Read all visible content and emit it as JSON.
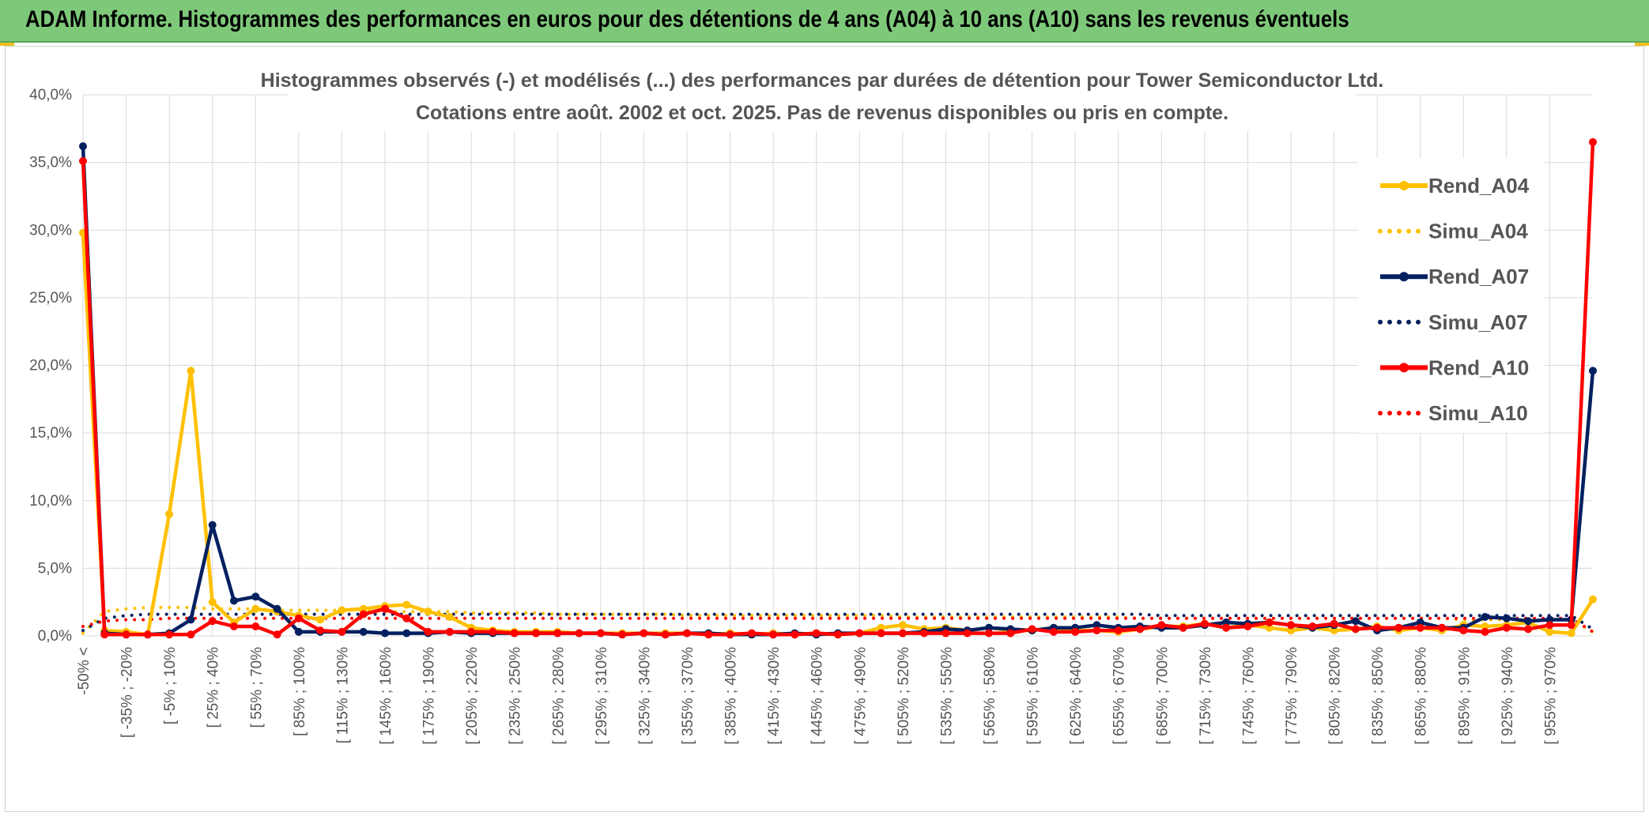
{
  "banner": {
    "title": "ADAM Informe. Histogrammes des performances en euros pour des détentions de 4 ans (A04) à 10 ans (A10) sans les revenus éventuels"
  },
  "colors": {
    "banner_bg": "#7ec87a",
    "A04": "#ffc000",
    "A07": "#002060",
    "A10": "#ff0000",
    "grid": "#d9d9d9"
  },
  "chart_data": {
    "type": "line",
    "title": "Histogrammes observés (-) et modélisés (...) des performances par durées de détention pour Tower Semiconductor Ltd.",
    "subtitle": "Cotations entre août. 2002 et oct. 2025. Pas de revenus disponibles ou pris en compte.",
    "xlabel": "",
    "ylabel": "",
    "ylim": [
      0,
      0.4
    ],
    "y_ticks": [
      "0,0%",
      "5,0%",
      "10,0%",
      "15,0%",
      "20,0%",
      "25,0%",
      "30,0%",
      "35,0%",
      "40,0%"
    ],
    "grid": true,
    "legend_position": "right",
    "x_tick_labels": [
      "-50% <",
      "[ -35% ; -20%",
      "[ -5% ; 10%",
      "[ 25% ; 40%",
      "[ 55% ; 70%",
      "[ 85% ; 100%",
      "[ 115% ; 130%",
      "[ 145% ; 160%",
      "[ 175% ; 190%",
      "[ 205% ; 220%",
      "[ 235% ; 250%",
      "[ 265% ; 280%",
      "[ 295% ; 310%",
      "[ 325% ; 340%",
      "[ 355% ; 370%",
      "[ 385% ; 400%",
      "[ 415% ; 430%",
      "[ 445% ; 460%",
      "[ 475% ; 490%",
      "[ 505% ; 520%",
      "[ 535% ; 550%",
      "[ 565% ; 580%",
      "[ 595% ; 610%",
      "[ 625% ; 640%",
      "[ 655% ; 670%",
      "[ 685% ; 700%",
      "[ 715% ; 730%",
      "[ 745% ; 760%",
      "[ 775% ; 790%",
      "[ 805% ; 820%",
      "[ 835% ; 850%",
      "[ 865% ; 880%",
      "[ 895% ; 910%",
      "[ 925% ; 940%",
      "[ 955% ; 970%"
    ],
    "n_points": 71,
    "series": [
      {
        "name": "Rend_A04",
        "style": "solid",
        "color": "#ffc000",
        "values": [
          0.298,
          0.004,
          0.003,
          0.001,
          0.09,
          0.196,
          0.025,
          0.01,
          0.02,
          0.018,
          0.015,
          0.012,
          0.019,
          0.02,
          0.022,
          0.023,
          0.018,
          0.014,
          0.006,
          0.004,
          0.003,
          0.003,
          0.003,
          0.002,
          0.002,
          0.002,
          0.002,
          0.002,
          0.002,
          0.001,
          0.002,
          0.001,
          0.002,
          0.001,
          0.002,
          0.001,
          0.002,
          0.006,
          0.008,
          0.005,
          0.006,
          0.004,
          0.006,
          0.004,
          0.004,
          0.006,
          0.004,
          0.004,
          0.003,
          0.005,
          0.007,
          0.007,
          0.009,
          0.006,
          0.008,
          0.006,
          0.004,
          0.006,
          0.004,
          0.005,
          0.007,
          0.004,
          0.006,
          0.004,
          0.008,
          0.007,
          0.008,
          0.01,
          0.003,
          0.002,
          0.027
        ]
      },
      {
        "name": "Simu_A04",
        "style": "dotted",
        "color": "#ffc000",
        "values": [
          0.002,
          0.018,
          0.02,
          0.021,
          0.021,
          0.021,
          0.02,
          0.02,
          0.02,
          0.019,
          0.019,
          0.019,
          0.019,
          0.019,
          0.018,
          0.018,
          0.018,
          0.018,
          0.017,
          0.017,
          0.017,
          0.017,
          0.016,
          0.016,
          0.016,
          0.016,
          0.016,
          0.016,
          0.015,
          0.015,
          0.015,
          0.015,
          0.015,
          0.015,
          0.015,
          0.015,
          0.015,
          0.015,
          0.014,
          0.014,
          0.014,
          0.014,
          0.014,
          0.014,
          0.014,
          0.014,
          0.014,
          0.014,
          0.014,
          0.013,
          0.013,
          0.013,
          0.013,
          0.013,
          0.013,
          0.013,
          0.013,
          0.013,
          0.013,
          0.013,
          0.013,
          0.013,
          0.013,
          0.013,
          0.012,
          0.012,
          0.012,
          0.012,
          0.012,
          0.012,
          0.003
        ]
      },
      {
        "name": "Rend_A07",
        "style": "solid",
        "color": "#002060",
        "values": [
          0.362,
          0.002,
          0.001,
          0.001,
          0.002,
          0.012,
          0.082,
          0.026,
          0.029,
          0.02,
          0.003,
          0.003,
          0.003,
          0.003,
          0.002,
          0.002,
          0.002,
          0.003,
          0.002,
          0.002,
          0.002,
          0.002,
          0.002,
          0.002,
          0.002,
          0.001,
          0.002,
          0.001,
          0.002,
          0.002,
          0.001,
          0.001,
          0.001,
          0.002,
          0.001,
          0.002,
          0.002,
          0.002,
          0.002,
          0.003,
          0.005,
          0.004,
          0.006,
          0.005,
          0.004,
          0.006,
          0.006,
          0.008,
          0.006,
          0.007,
          0.006,
          0.006,
          0.008,
          0.01,
          0.009,
          0.01,
          0.008,
          0.006,
          0.008,
          0.011,
          0.004,
          0.006,
          0.01,
          0.006,
          0.006,
          0.014,
          0.013,
          0.011,
          0.012,
          0.012,
          0.196
        ]
      },
      {
        "name": "Simu_A07",
        "style": "dotted",
        "color": "#002060",
        "values": [
          0.004,
          0.013,
          0.015,
          0.016,
          0.016,
          0.016,
          0.016,
          0.016,
          0.016,
          0.016,
          0.016,
          0.016,
          0.016,
          0.016,
          0.016,
          0.016,
          0.016,
          0.016,
          0.016,
          0.016,
          0.016,
          0.016,
          0.016,
          0.016,
          0.016,
          0.016,
          0.016,
          0.016,
          0.016,
          0.016,
          0.016,
          0.016,
          0.016,
          0.016,
          0.016,
          0.016,
          0.016,
          0.016,
          0.016,
          0.016,
          0.016,
          0.016,
          0.016,
          0.016,
          0.016,
          0.016,
          0.016,
          0.016,
          0.016,
          0.016,
          0.015,
          0.015,
          0.015,
          0.015,
          0.015,
          0.015,
          0.015,
          0.015,
          0.015,
          0.015,
          0.015,
          0.015,
          0.015,
          0.015,
          0.015,
          0.015,
          0.015,
          0.015,
          0.015,
          0.015,
          0.005
        ]
      },
      {
        "name": "Rend_A10",
        "style": "solid",
        "color": "#ff0000",
        "values": [
          0.351,
          0.001,
          0.001,
          0.001,
          0.001,
          0.001,
          0.011,
          0.007,
          0.007,
          0.001,
          0.013,
          0.004,
          0.003,
          0.016,
          0.02,
          0.013,
          0.003,
          0.003,
          0.003,
          0.003,
          0.002,
          0.002,
          0.002,
          0.002,
          0.002,
          0.001,
          0.002,
          0.001,
          0.002,
          0.001,
          0.001,
          0.002,
          0.001,
          0.001,
          0.002,
          0.001,
          0.002,
          0.002,
          0.002,
          0.002,
          0.002,
          0.002,
          0.002,
          0.002,
          0.005,
          0.003,
          0.003,
          0.004,
          0.004,
          0.005,
          0.008,
          0.006,
          0.009,
          0.006,
          0.007,
          0.01,
          0.008,
          0.007,
          0.009,
          0.005,
          0.006,
          0.006,
          0.006,
          0.006,
          0.004,
          0.003,
          0.006,
          0.005,
          0.008,
          0.008,
          0.365
        ]
      },
      {
        "name": "Simu_A10",
        "style": "dotted",
        "color": "#ff0000",
        "values": [
          0.007,
          0.011,
          0.012,
          0.012,
          0.013,
          0.013,
          0.013,
          0.013,
          0.013,
          0.013,
          0.013,
          0.013,
          0.013,
          0.013,
          0.013,
          0.013,
          0.013,
          0.013,
          0.013,
          0.013,
          0.013,
          0.013,
          0.013,
          0.013,
          0.013,
          0.013,
          0.013,
          0.013,
          0.013,
          0.013,
          0.013,
          0.013,
          0.013,
          0.013,
          0.013,
          0.013,
          0.013,
          0.013,
          0.013,
          0.013,
          0.013,
          0.013,
          0.013,
          0.013,
          0.013,
          0.013,
          0.013,
          0.013,
          0.013,
          0.013,
          0.013,
          0.013,
          0.013,
          0.013,
          0.013,
          0.013,
          0.013,
          0.013,
          0.013,
          0.013,
          0.013,
          0.013,
          0.013,
          0.013,
          0.013,
          0.013,
          0.013,
          0.013,
          0.013,
          0.013,
          0.003
        ]
      }
    ]
  }
}
